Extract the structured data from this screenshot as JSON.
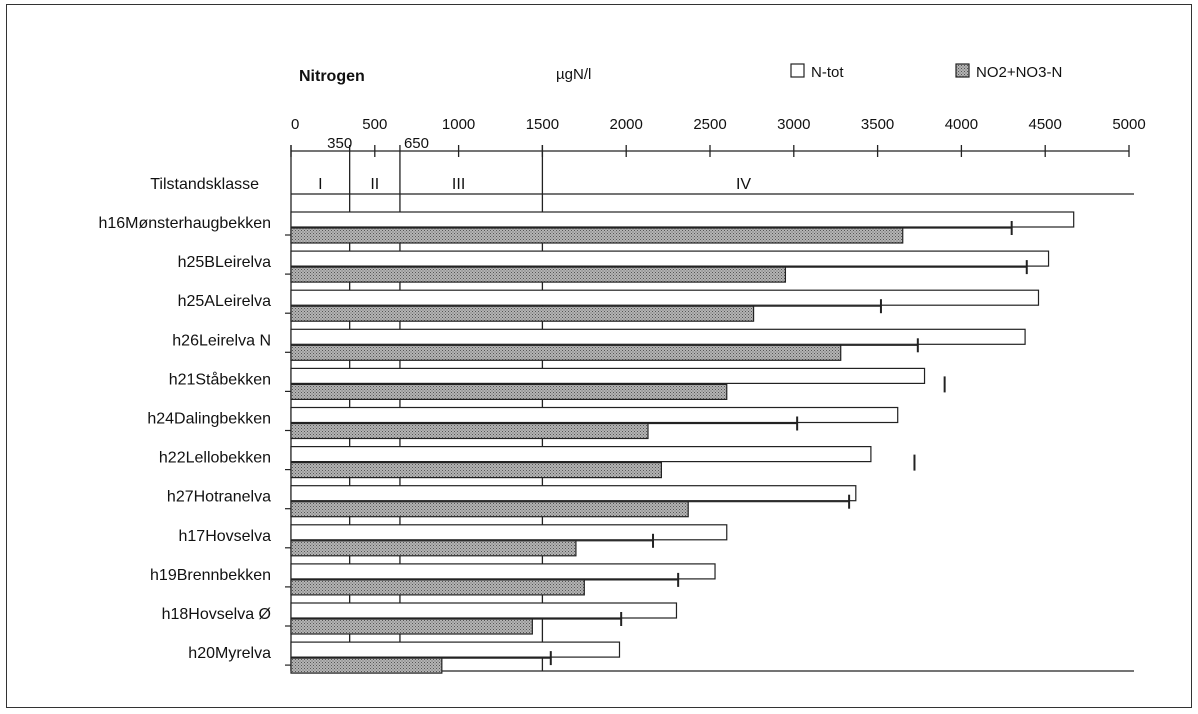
{
  "chart_data": {
    "type": "bar",
    "title": "Nitrogen",
    "unit": "µgN/l",
    "categories_label": "Tilstandsklasse",
    "legend": [
      {
        "label": "N-tot",
        "fill": "#ffffff"
      },
      {
        "label": "NO2+NO3-N",
        "fill": "#a9a9a9"
      }
    ],
    "xlim": [
      0,
      5000
    ],
    "xticks": [
      0,
      500,
      1000,
      1500,
      2000,
      2500,
      3000,
      3500,
      4000,
      4500,
      5000
    ],
    "xtick_labels": [
      "0",
      "500",
      "1000",
      "1500",
      "2000",
      "2500",
      "3000",
      "3500",
      "4000",
      "4500",
      "5000"
    ],
    "class_thresholds": [
      {
        "value": 350,
        "label": "350"
      },
      {
        "value": 650,
        "label": "650"
      },
      {
        "value": 1500,
        "label": ""
      }
    ],
    "class_labels": [
      {
        "label": "I",
        "at": 175
      },
      {
        "label": "II",
        "at": 500
      },
      {
        "label": "III",
        "at": 1000
      },
      {
        "label": "IV",
        "at": 2700
      }
    ],
    "categories": [
      "h16Mønsterhaugbekken",
      "h25BLeirelva",
      "h25ALeirelva",
      "h26Leirelva N",
      "h21Ståbekken",
      "h24Dalingbekken",
      "h22Lellobekken",
      "h27Hotranelva",
      "h17Hovselva",
      "h19Brennbekken",
      "h18Hovselva Ø",
      "h20Myrelva"
    ],
    "series": [
      {
        "name": "N-tot",
        "values": [
          4670,
          4520,
          4460,
          4380,
          3780,
          3620,
          3460,
          3370,
          2600,
          2530,
          2300,
          1960
        ]
      },
      {
        "name": "NO2+NO3-N",
        "values": [
          3650,
          2950,
          2760,
          3280,
          2600,
          2130,
          2210,
          2370,
          1700,
          1750,
          1440,
          900
        ]
      }
    ],
    "error_marks": [
      4300,
      4390,
      3520,
      3740,
      3900,
      3020,
      3720,
      3330,
      2160,
      2310,
      1970,
      1550
    ]
  }
}
